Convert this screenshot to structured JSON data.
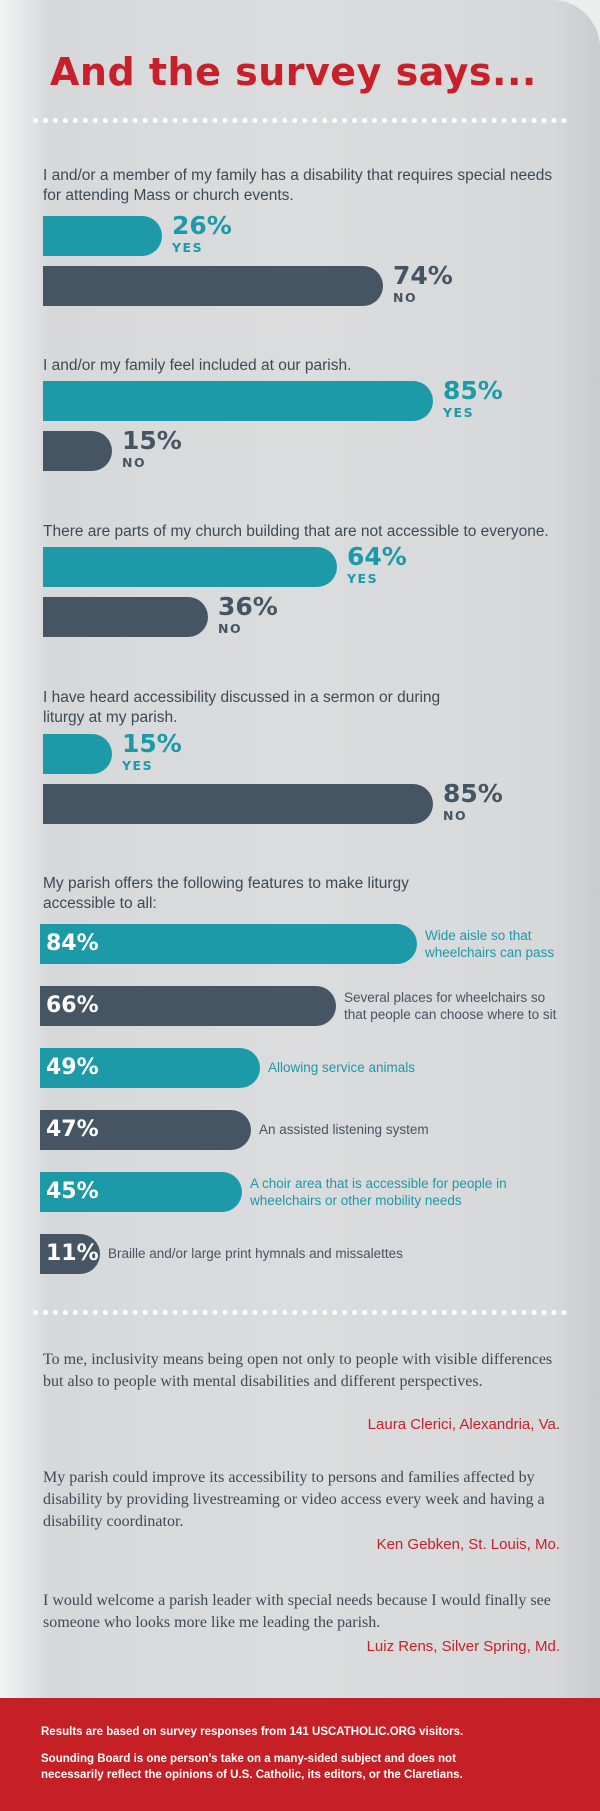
{
  "title": "And the survey says...",
  "chart_data": [
    {
      "type": "bar",
      "title": "I and/or a member of my family has a disability that requires special needs for attending Mass or church events.",
      "categories": [
        "YES",
        "NO"
      ],
      "values": [
        26,
        74
      ],
      "labels": [
        "26%",
        "74%"
      ],
      "colors": [
        "#1c9aa8",
        "#455563"
      ]
    },
    {
      "type": "bar",
      "title": "I and/or my family feel included at our parish.",
      "categories": [
        "YES",
        "NO"
      ],
      "values": [
        85,
        15
      ],
      "labels": [
        "85%",
        "15%"
      ],
      "colors": [
        "#1c9aa8",
        "#455563"
      ]
    },
    {
      "type": "bar",
      "title": "There are parts of my church building that are not accessible to everyone.",
      "categories": [
        "YES",
        "NO"
      ],
      "values": [
        64,
        36
      ],
      "labels": [
        "64%",
        "36%"
      ],
      "colors": [
        "#1c9aa8",
        "#455563"
      ]
    },
    {
      "type": "bar",
      "title": "I have heard accessibility discussed in a sermon or during liturgy at my parish.",
      "categories": [
        "YES",
        "NO"
      ],
      "values": [
        15,
        85
      ],
      "labels": [
        "15%",
        "85%"
      ],
      "colors": [
        "#1c9aa8",
        "#455563"
      ]
    },
    {
      "type": "bar",
      "title": "My parish offers the following features to make liturgy accessible to all:",
      "categories": [
        "Wide aisle so that wheelchairs can pass",
        "Several places for wheelchairs so that people can choose where to sit",
        "Allowing service animals",
        "An assisted listening system",
        "A choir area that is accessible for people in wheelchairs or other mobility needs",
        "Braille and/or large print hymnals and missalettes"
      ],
      "values": [
        84,
        66,
        49,
        47,
        45,
        11
      ],
      "labels": [
        "84%",
        "66%",
        "49%",
        "47%",
        "45%",
        "11%"
      ],
      "colors": [
        "#1c9aa8",
        "#455563",
        "#1c9aa8",
        "#455563",
        "#1c9aa8",
        "#455563"
      ]
    }
  ],
  "features_text": [
    [
      "Wide aisle so that",
      "wheelchairs can pass"
    ],
    [
      "Several places for wheelchairs so",
      "that people can choose where to sit"
    ],
    [
      "Allowing service animals"
    ],
    [
      "An assisted listening system"
    ],
    [
      "A choir area that is accessible for people in",
      "wheelchairs or other mobility needs"
    ],
    [
      "Braille and/or large print hymnals and missalettes"
    ]
  ],
  "quotes": [
    {
      "text": "To me, inclusivity means being open not only to people with visible differences but also to people with mental disabilities and different perspectives.",
      "author": "Laura Clerici, Alexandria, Va."
    },
    {
      "text": "My parish could improve its accessibility to persons and families affected by disability by providing livestreaming or video access every week and having a disability coordinator.",
      "author": "Ken Gebken, St. Louis, Mo."
    },
    {
      "text": "I would welcome a parish leader with special needs because I would finally see someone who looks more like me leading the parish.",
      "author": "Luiz Rens, Silver Spring, Md."
    }
  ],
  "footer": {
    "line1": "Results are based on survey responses from 141 USCATHOLIC.ORG visitors.",
    "line2": "Sounding Board is one person’s take on a many-sided subject and does not necessarily reflect the opinions of U.S. Catholic, its editors, or the Claretians."
  }
}
